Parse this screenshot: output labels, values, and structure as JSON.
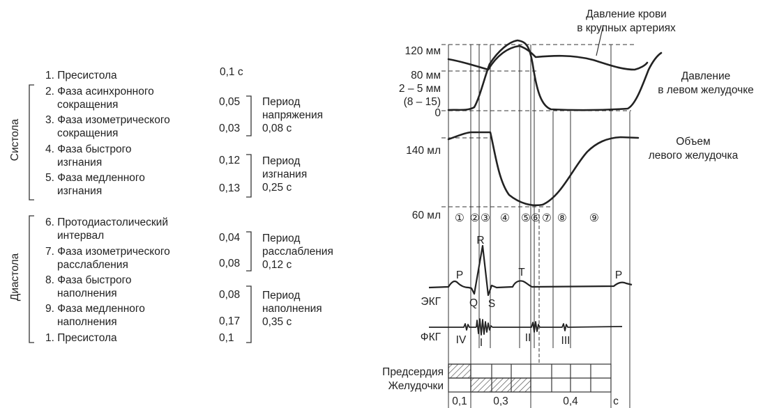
{
  "phases": {
    "systole_label": "Систола",
    "diastole_label": "Диастола",
    "rows": [
      {
        "lines": [
          "1. Пресистола"
        ],
        "value": "0,1 с"
      },
      {
        "lines": [
          "2. Фаза асинхронного",
          "сокращения"
        ],
        "value": "0,05"
      },
      {
        "lines": [
          "3. Фаза изометрического",
          "сокращения"
        ],
        "value": "0,03"
      },
      {
        "lines": [
          "4.  Фаза быстрого",
          "изгнания"
        ],
        "value": "0,12"
      },
      {
        "lines": [
          "5. Фаза медленного",
          "изгнания"
        ],
        "value": "0,13"
      },
      {
        "lines": [
          "6. Протодиастолический",
          "интервал"
        ],
        "value": "0,04"
      },
      {
        "lines": [
          "7. Фаза изометрического",
          "расслабления"
        ],
        "value": "0,08"
      },
      {
        "lines": [
          "8. Фаза быстрого",
          "наполнения"
        ],
        "value": "0,08"
      },
      {
        "lines": [
          "9. Фаза медленного",
          "наполнения"
        ],
        "value": "0,17"
      },
      {
        "lines": [
          "1. Пресистола"
        ],
        "value": "0,1"
      }
    ],
    "periods": [
      {
        "lines": [
          "Период",
          "напряжения",
          "0,08 с"
        ]
      },
      {
        "lines": [
          "Период",
          "изгнания",
          "0,25 с"
        ]
      },
      {
        "lines": [
          "Период",
          "расслабления",
          "0,12 с"
        ]
      },
      {
        "lines": [
          "Период",
          "наполнения",
          "0,35 с"
        ]
      }
    ]
  },
  "chart": {
    "arterial_label": [
      "Давление крови",
      "в крупных артериях"
    ],
    "ventricle_pressure_label": [
      "Давление",
      "в левом желудочке"
    ],
    "volume_label": [
      "Объем",
      "левого желудочка"
    ],
    "axis": {
      "p120": "120 мм",
      "p80": "80 мм",
      "p2_5": "2 – 5 мм",
      "p8_15": "(8 – 15)",
      "p0": "0",
      "v140": "140 мл",
      "v60": "60 мл"
    },
    "phase_numbers": [
      "①",
      "②",
      "③",
      "④",
      "⑤",
      "⑥",
      "⑦",
      "⑧",
      "⑨"
    ],
    "ecg": {
      "label": "ЭКГ",
      "p1": "P",
      "q": "Q",
      "r": "R",
      "s": "S",
      "t": "T",
      "p2": "P"
    },
    "pcg": {
      "label": "ФКГ",
      "iv": "IV",
      "i": "I",
      "ii": "II",
      "iii": "III"
    },
    "bars": {
      "atria": "Предсердия",
      "ventricles": "Желудочки"
    },
    "time": {
      "t1": "0,1",
      "t2": "0,3",
      "t3": "0,4",
      "unit": "с"
    }
  }
}
